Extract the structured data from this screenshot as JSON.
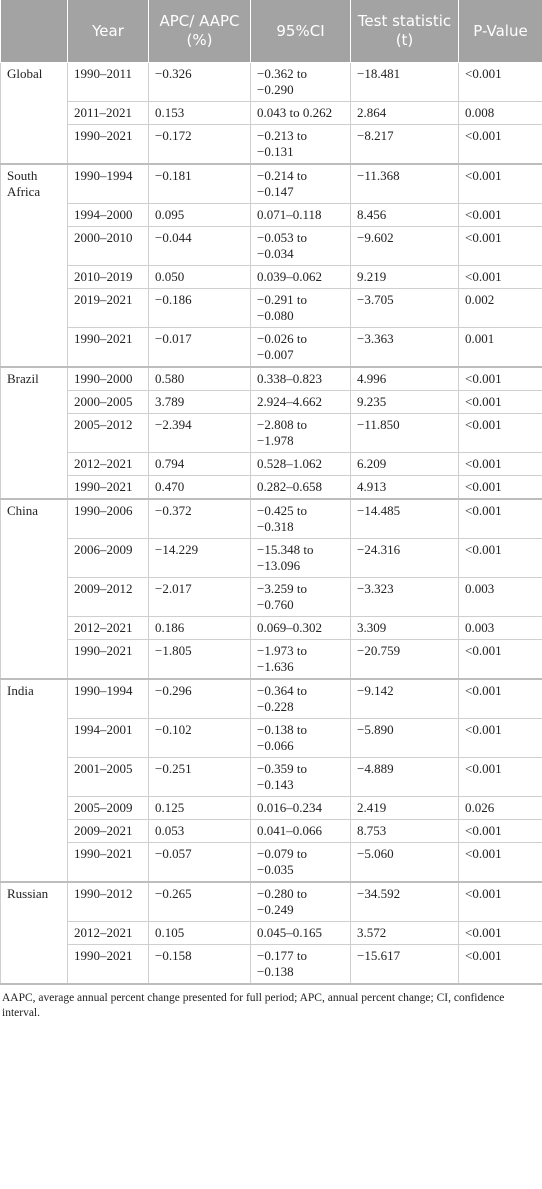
{
  "table": {
    "header": [
      "Year",
      "APC/ AAPC (%)",
      "95%CI",
      "Test statistic (t)",
      "P-Value"
    ],
    "groups": [
      {
        "name": "Global",
        "rows": [
          [
            "1990–2011",
            "−0.326",
            "−0.362 to −0.290",
            "−18.481",
            "<0.001"
          ],
          [
            "2011–2021",
            "0.153",
            "0.043 to 0.262",
            "2.864",
            "0.008"
          ],
          [
            "1990–2021",
            "−0.172",
            "−0.213 to −0.131",
            "−8.217",
            "<0.001"
          ]
        ]
      },
      {
        "name": "South Africa",
        "rows": [
          [
            "1990–1994",
            "−0.181",
            "−0.214 to −0.147",
            "−11.368",
            "<0.001"
          ],
          [
            "1994–2000",
            "0.095",
            "0.071–0.118",
            "8.456",
            "<0.001"
          ],
          [
            "2000–2010",
            "−0.044",
            "−0.053 to −0.034",
            "−9.602",
            "<0.001"
          ],
          [
            "2010–2019",
            "0.050",
            "0.039–0.062",
            "9.219",
            "<0.001"
          ],
          [
            "2019–2021",
            "−0.186",
            "−0.291 to −0.080",
            "−3.705",
            "0.002"
          ],
          [
            "1990–2021",
            "−0.017",
            "−0.026 to −0.007",
            "−3.363",
            "0.001"
          ]
        ]
      },
      {
        "name": "Brazil",
        "rows": [
          [
            "1990–2000",
            "0.580",
            "0.338–0.823",
            "4.996",
            "<0.001"
          ],
          [
            "2000–2005",
            "3.789",
            "2.924–4.662",
            "9.235",
            "<0.001"
          ],
          [
            "2005–2012",
            "−2.394",
            "−2.808 to −1.978",
            "−11.850",
            "<0.001"
          ],
          [
            "2012–2021",
            "0.794",
            "0.528–1.062",
            "6.209",
            "<0.001"
          ],
          [
            "1990–2021",
            "0.470",
            "0.282–0.658",
            "4.913",
            "<0.001"
          ]
        ]
      },
      {
        "name": "China",
        "rows": [
          [
            "1990–2006",
            "−0.372",
            "−0.425 to −0.318",
            "−14.485",
            "<0.001"
          ],
          [
            "2006–2009",
            "−14.229",
            "−15.348 to −13.096",
            "−24.316",
            "<0.001"
          ],
          [
            "2009–2012",
            "−2.017",
            "−3.259 to −0.760",
            "−3.323",
            "0.003"
          ],
          [
            "2012–2021",
            "0.186",
            "0.069–0.302",
            "3.309",
            "0.003"
          ],
          [
            "1990–2021",
            "−1.805",
            "−1.973 to −1.636",
            "−20.759",
            "<0.001"
          ]
        ]
      },
      {
        "name": "India",
        "rows": [
          [
            "1990–1994",
            "−0.296",
            "−0.364 to −0.228",
            "−9.142",
            "<0.001"
          ],
          [
            "1994–2001",
            "−0.102",
            "−0.138 to −0.066",
            "−5.890",
            "<0.001"
          ],
          [
            "2001–2005",
            "−0.251",
            "−0.359 to −0.143",
            "−4.889",
            "<0.001"
          ],
          [
            "2005–2009",
            "0.125",
            "0.016–0.234",
            "2.419",
            "0.026"
          ],
          [
            "2009–2021",
            "0.053",
            "0.041–0.066",
            "8.753",
            "<0.001"
          ],
          [
            "1990–2021",
            "−0.057",
            "−0.079 to −0.035",
            "−5.060",
            "<0.001"
          ]
        ]
      },
      {
        "name": "Russian",
        "rows": [
          [
            "1990–2012",
            "−0.265",
            "−0.280 to −0.249",
            "−34.592",
            "<0.001"
          ],
          [
            "2012–2021",
            "0.105",
            "0.045–0.165",
            "3.572",
            "<0.001"
          ],
          [
            "1990–2021",
            "−0.158",
            "−0.177 to −0.138",
            "−15.617",
            "<0.001"
          ]
        ]
      }
    ]
  },
  "footnote": "AAPC, average annual percent change presented for full period; APC, annual percent change; CI, confidence interval."
}
